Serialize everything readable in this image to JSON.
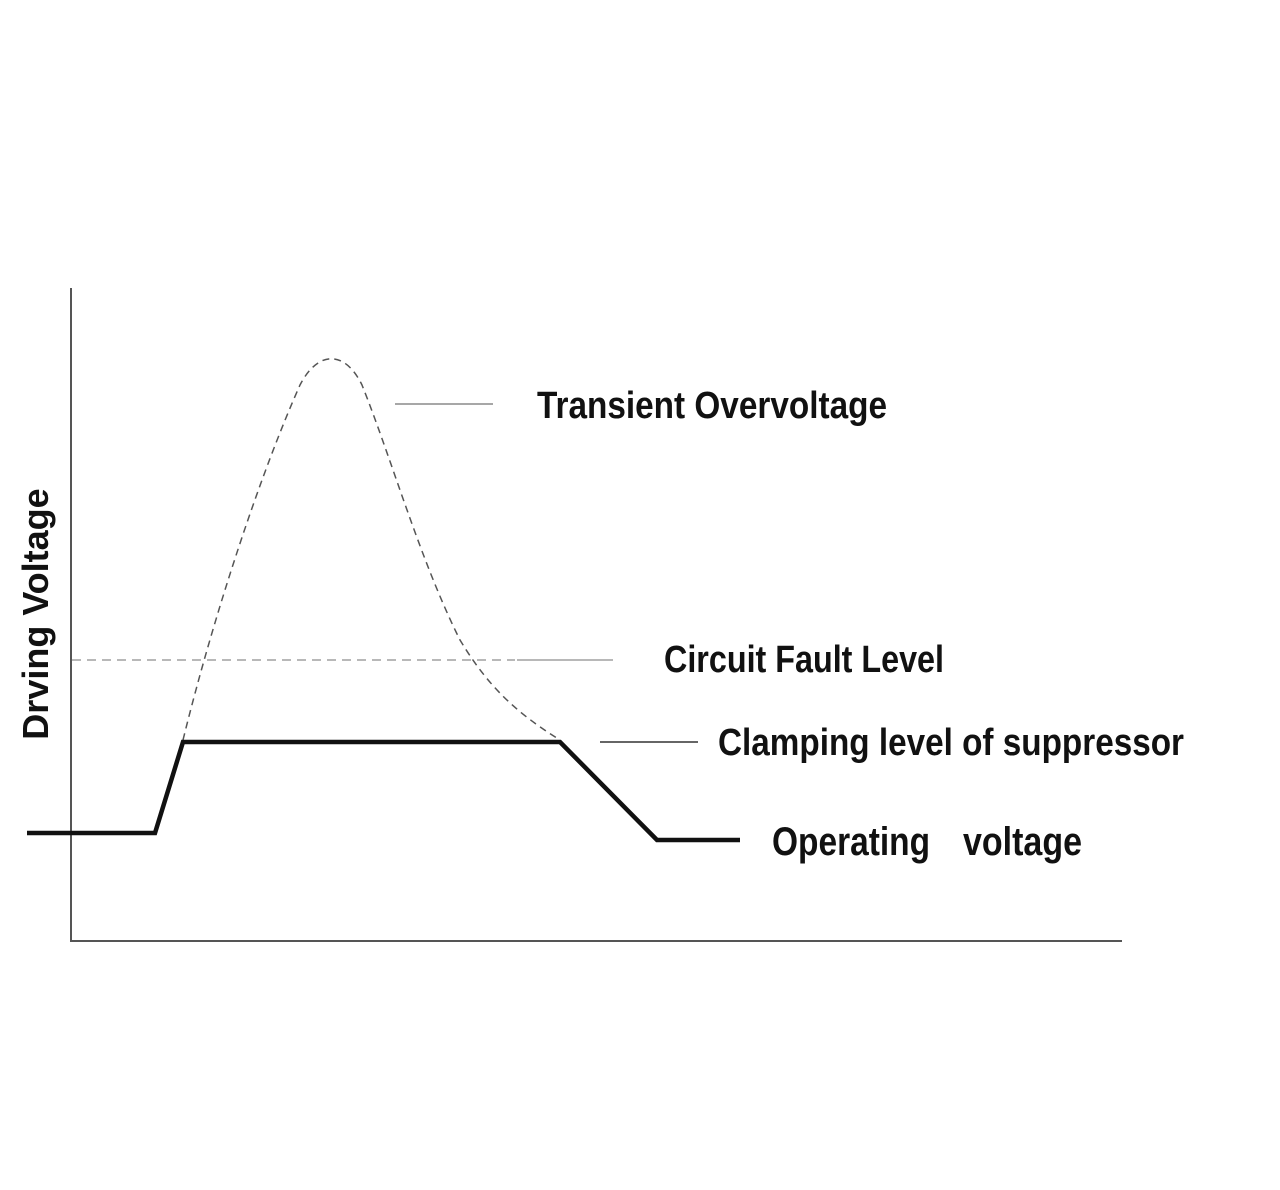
{
  "diagram": {
    "y_axis_label": "Drving Voltage",
    "labels": {
      "transient": "Transient Overvoltage",
      "fault": "Circuit Fault Level",
      "clamping": "Clamping level of suppressor",
      "operating_word1": "Operating",
      "operating_word2": "voltage"
    }
  },
  "colors": {
    "axis": "#555555",
    "clamp_line": "#111111",
    "transient_curve": "#555555",
    "fault_line": "#b8b8b8",
    "leader_line": "#8a8a8a",
    "text": "#111111"
  }
}
